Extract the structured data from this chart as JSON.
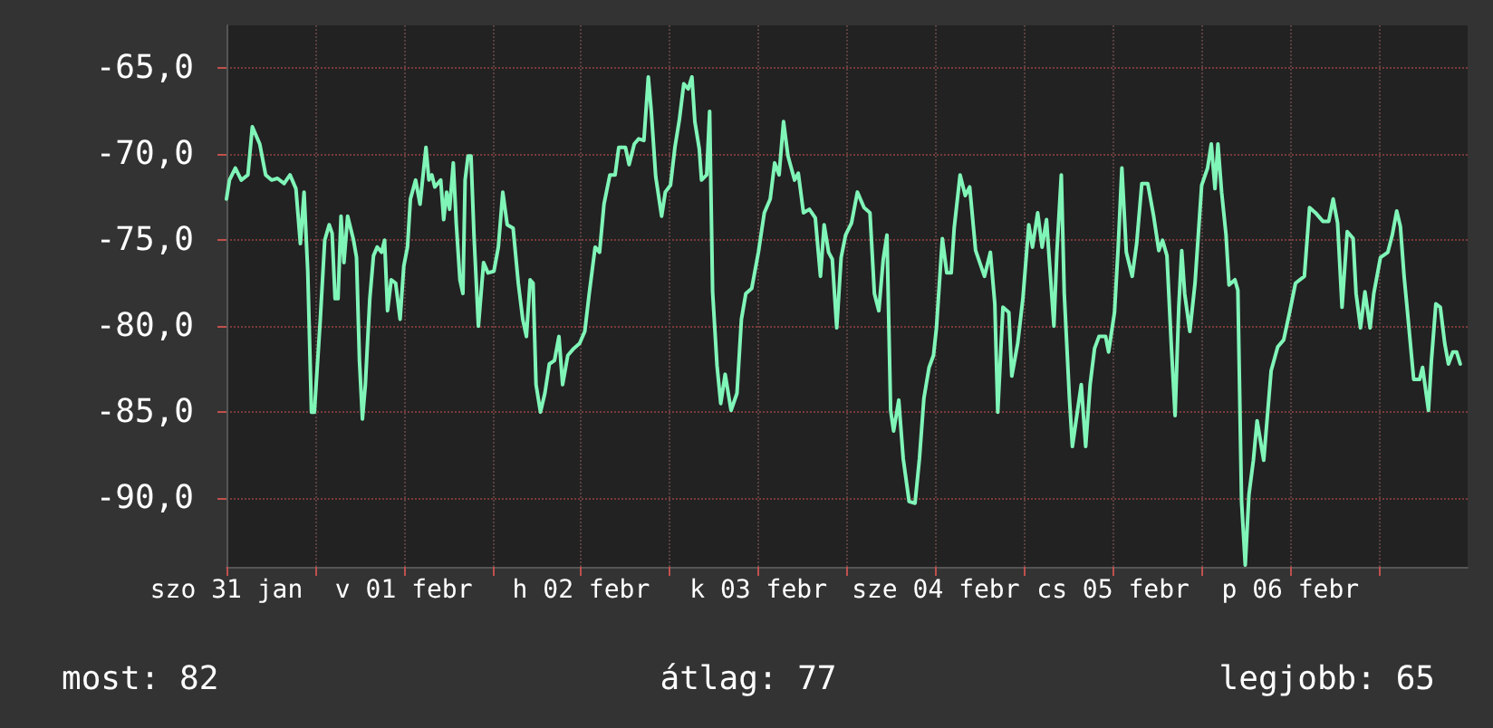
{
  "chart_data": {
    "type": "line",
    "annotations": [
      "most: 82",
      "átlag: 77",
      "legjobb: 65"
    ],
    "xlim": [
      "--01-31T12:00",
      "--02-07T12:00"
    ],
    "ylim": [
      -94,
      -62.5
    ],
    "xticks": [
      {
        "value": "--01-31T12:00",
        "label": "szo 31 jan"
      },
      {
        "value": "--02-01T00:00",
        "label": null
      },
      {
        "value": "--02-01T12:00",
        "label": "v 01 febr"
      },
      {
        "value": "--02-02T00:00",
        "label": null
      },
      {
        "value": "--02-02T12:00",
        "label": "h 02 febr"
      },
      {
        "value": "--02-03T00:00",
        "label": null
      },
      {
        "value": "--02-03T12:00",
        "label": "k 03 febr"
      },
      {
        "value": "--02-04T00:00",
        "label": null
      },
      {
        "value": "--02-04T12:00",
        "label": "sze 04 febr"
      },
      {
        "value": "--02-05T00:00",
        "label": null
      },
      {
        "value": "--02-05T12:00",
        "label": "cs 05 febr"
      },
      {
        "value": "--02-06T00:00",
        "label": null
      },
      {
        "value": "--02-06T12:00",
        "label": "p 06 febr"
      },
      {
        "value": "--02-07T00:00",
        "label": null
      }
    ],
    "yticks": [
      {
        "value": -65,
        "label": "-65,0"
      },
      {
        "value": -70,
        "label": "-70,0"
      },
      {
        "value": -75,
        "label": "-75,0"
      },
      {
        "value": -80,
        "label": "-80,0"
      },
      {
        "value": -85,
        "label": "-85,0"
      },
      {
        "value": -90,
        "label": "-90,0"
      }
    ],
    "grid": true,
    "marker": "none",
    "line_style": "solid",
    "series": [
      {
        "color": "#80f5b8",
        "x": [
          "--01-31T12:00",
          "--01-31T12:24",
          "--01-31T13:12",
          "--01-31T14:00",
          "--01-31T14:54",
          "--01-31T15:30",
          "--01-31T16:30",
          "--01-31T17:18",
          "--01-31T18:06",
          "--01-31T18:54",
          "--01-31T19:48",
          "--01-31T20:36",
          "--01-31T21:24",
          "--01-31T22:00",
          "--01-31T22:30",
          "--01-31T23:00",
          "--01-31T23:30",
          "--01-31T23:54",
          "--02-01T00:18",
          "--02-01T00:42",
          "--02-01T01:18",
          "--02-01T01:54",
          "--02-01T02:18",
          "--02-01T02:42",
          "--02-01T03:06",
          "--02-01T03:30",
          "--02-01T03:54",
          "--02-01T04:24",
          "--02-01T04:48",
          "--02-01T05:12",
          "--02-01T05:36",
          "--02-01T06:00",
          "--02-01T06:24",
          "--02-01T06:48",
          "--02-01T07:24",
          "--02-01T07:54",
          "--02-01T08:24",
          "--02-01T09:00",
          "--02-01T09:24",
          "--02-01T09:48",
          "--02-01T10:18",
          "--02-01T10:54",
          "--02-01T11:30",
          "--02-01T12:00",
          "--02-01T12:30",
          "--02-01T12:54",
          "--02-01T13:36",
          "--02-01T14:12",
          "--02-01T15:00",
          "--02-01T15:24",
          "--02-01T15:48",
          "--02-01T16:12",
          "--02-01T17:00",
          "--02-01T17:24",
          "--02-01T17:48",
          "--02-01T18:12",
          "--02-01T18:42",
          "--02-01T19:06",
          "--02-01T19:36",
          "--02-01T20:00",
          "--02-01T20:18",
          "--02-01T20:42",
          "--02-01T21:06",
          "--02-01T21:30",
          "--02-01T22:06",
          "--02-01T22:48",
          "--02-01T23:24",
          "--02-02T00:12",
          "--02-02T00:48",
          "--02-02T01:24",
          "--02-02T02:00",
          "--02-02T02:48",
          "--02-02T03:30",
          "--02-02T04:06",
          "--02-02T04:36",
          "--02-02T05:06",
          "--02-02T05:30",
          "--02-02T05:54",
          "--02-02T06:30",
          "--02-02T07:06",
          "--02-02T07:42",
          "--02-02T08:24",
          "--02-02T09:00",
          "--02-02T09:30",
          "--02-02T10:12",
          "--02-02T11:00",
          "--02-02T11:48",
          "--02-02T12:30",
          "--02-02T13:06",
          "--02-02T13:54",
          "--02-02T14:30",
          "--02-02T15:06",
          "--02-02T15:54",
          "--02-02T16:36",
          "--02-02T17:06",
          "--02-02T18:00",
          "--02-02T18:30",
          "--02-02T19:12",
          "--02-02T19:48",
          "--02-02T20:30",
          "--02-02T21:06",
          "--02-02T21:30",
          "--02-02T22:06",
          "--02-02T22:54",
          "--02-02T23:24",
          "--02-03T00:06",
          "--02-03T00:42",
          "--02-03T01:18",
          "--02-03T01:54",
          "--02-03T02:30",
          "--02-03T03:00",
          "--02-03T03:24",
          "--02-03T04:00",
          "--02-03T04:18",
          "--02-03T05:00",
          "--02-03T05:24",
          "--02-03T05:48",
          "--02-03T06:24",
          "--02-03T06:54",
          "--02-03T07:30",
          "--02-03T08:18",
          "--02-03T09:06",
          "--02-03T09:42",
          "--02-03T10:18",
          "--02-03T11:06",
          "--02-03T12:00",
          "--02-03T12:48",
          "--02-03T13:36",
          "--02-03T14:12",
          "--02-03T14:48",
          "--02-03T15:24",
          "--02-03T16:00",
          "--02-03T16:54",
          "--02-03T17:24",
          "--02-03T18:06",
          "--02-03T18:54",
          "--02-03T19:42",
          "--02-03T20:24",
          "--02-03T20:54",
          "--02-03T21:30",
          "--02-03T22:00",
          "--02-03T22:36",
          "--02-03T23:12",
          "--02-03T23:48",
          "--02-04T00:36",
          "--02-04T01:24",
          "--02-04T02:18",
          "--02-04T03:06",
          "--02-04T03:42",
          "--02-04T04:18",
          "--02-04T04:54",
          "--02-04T05:24",
          "--02-04T05:54",
          "--02-04T06:18",
          "--02-04T07:00",
          "--02-04T07:36",
          "--02-04T08:24",
          "--02-04T09:12",
          "--02-04T09:48",
          "--02-04T10:24",
          "--02-04T11:06",
          "--02-04T11:42",
          "--02-04T12:06",
          "--02-04T12:54",
          "--02-04T13:30",
          "--02-04T14:06",
          "--02-04T14:30",
          "--02-04T15:18",
          "--02-04T16:00",
          "--02-04T16:36",
          "--02-04T17:24",
          "--02-04T18:36",
          "--02-04T19:24",
          "--02-04T20:00",
          "--02-04T20:24",
          "--02-04T21:06",
          "--02-04T21:54",
          "--02-04T22:18",
          "--02-04T23:06",
          "--02-04T23:48",
          "--02-05T00:36",
          "--02-05T01:06",
          "--02-05T01:48",
          "--02-05T02:24",
          "--02-05T03:00",
          "--02-05T04:00",
          "--02-05T04:24",
          "--02-05T05:00",
          "--02-05T05:24",
          "--02-05T06:06",
          "--02-05T06:30",
          "--02-05T07:00",
          "--02-05T07:42",
          "--02-05T08:18",
          "--02-05T08:54",
          "--02-05T09:30",
          "--02-05T10:06",
          "--02-05T11:00",
          "--02-05T11:24",
          "--02-05T12:12",
          "--02-05T12:42",
          "--02-05T13:12",
          "--02-05T13:48",
          "--02-05T14:36",
          "--02-05T15:12",
          "--02-05T15:54",
          "--02-05T16:42",
          "--02-05T17:30",
          "--02-05T18:12",
          "--02-05T18:42",
          "--02-05T19:18",
          "--02-05T19:54",
          "--02-05T20:24",
          "--02-05T20:54",
          "--02-05T21:18",
          "--02-05T21:42",
          "--02-05T22:24",
          "--02-05T23:06",
          "--02-06T00:00",
          "--02-06T00:48",
          "--02-06T01:18",
          "--02-06T01:48",
          "--02-06T02:12",
          "--02-06T02:42",
          "--02-06T03:18",
          "--02-06T03:42",
          "--02-06T04:30",
          "--02-06T04:54",
          "--02-06T05:24",
          "--02-06T05:54",
          "--02-06T06:24",
          "--02-06T07:00",
          "--02-06T07:30",
          "--02-06T08:24",
          "--02-06T08:54",
          "--02-06T09:24",
          "--02-06T10:18",
          "--02-06T11:06",
          "--02-06T11:54",
          "--02-06T12:42",
          "--02-06T13:54",
          "--02-06T14:36",
          "--02-06T15:24",
          "--02-06T16:24",
          "--02-06T17:12",
          "--02-06T17:48",
          "--02-06T18:24",
          "--02-06T19:00",
          "--02-06T19:42",
          "--02-06T20:30",
          "--02-06T20:54",
          "--02-06T21:30",
          "--02-06T22:06",
          "--02-06T22:48",
          "--02-06T23:18",
          "--02-07T00:12",
          "--02-07T01:12",
          "--02-07T01:48",
          "--02-07T02:24",
          "--02-07T02:54",
          "--02-07T03:24",
          "--02-07T03:48",
          "--02-07T04:42",
          "--02-07T05:30",
          "--02-07T05:54",
          "--02-07T06:42",
          "--02-07T07:06",
          "--02-07T07:42",
          "--02-07T08:18",
          "--02-07T08:54",
          "--02-07T09:24",
          "--02-07T10:00",
          "--02-07T10:30",
          "--02-07T11:00"
        ],
        "values": [
          -72.6,
          -71.5,
          -70.8,
          -71.5,
          -71.2,
          -68.4,
          -69.4,
          -71.2,
          -71.5,
          -71.4,
          -71.7,
          -71.2,
          -72.0,
          -75.2,
          -72.2,
          -76.8,
          -85.0,
          -85.0,
          -82.3,
          -79.6,
          -75.0,
          -74.1,
          -74.6,
          -78.4,
          -78.4,
          -73.6,
          -76.3,
          -73.6,
          -74.3,
          -75.0,
          -76.0,
          -82.0,
          -85.4,
          -83.4,
          -78.4,
          -75.9,
          -75.4,
          -75.7,
          -75.0,
          -79.1,
          -77.3,
          -77.5,
          -79.6,
          -76.5,
          -75.4,
          -72.6,
          -71.5,
          -72.9,
          -69.6,
          -71.5,
          -71.2,
          -71.9,
          -71.5,
          -73.8,
          -72.2,
          -73.2,
          -70.5,
          -74.0,
          -77.3,
          -78.1,
          -71.5,
          -70.1,
          -70.1,
          -74.7,
          -80.0,
          -76.3,
          -76.9,
          -76.8,
          -75.4,
          -72.2,
          -74.1,
          -74.3,
          -77.5,
          -79.6,
          -80.6,
          -77.3,
          -77.5,
          -83.4,
          -85.0,
          -83.9,
          -82.2,
          -82.0,
          -80.6,
          -83.4,
          -81.7,
          -81.3,
          -81.0,
          -80.3,
          -78.1,
          -75.4,
          -75.7,
          -72.9,
          -71.2,
          -71.2,
          -69.6,
          -69.6,
          -70.6,
          -69.4,
          -69.1,
          -69.2,
          -65.5,
          -67.5,
          -71.3,
          -73.6,
          -72.2,
          -71.8,
          -69.6,
          -68.0,
          -65.9,
          -66.2,
          -65.5,
          -68.1,
          -69.7,
          -71.5,
          -71.2,
          -67.5,
          -78.0,
          -82.3,
          -84.5,
          -82.8,
          -84.9,
          -83.9,
          -79.6,
          -78.1,
          -77.8,
          -75.7,
          -73.4,
          -72.6,
          -70.5,
          -71.2,
          -68.1,
          -70.1,
          -71.5,
          -71.1,
          -73.4,
          -73.2,
          -73.7,
          -77.1,
          -74.1,
          -75.7,
          -76.1,
          -80.1,
          -76.0,
          -74.7,
          -74.0,
          -72.2,
          -73.1,
          -73.4,
          -78.1,
          -79.1,
          -76.1,
          -74.7,
          -84.9,
          -86.1,
          -84.3,
          -87.7,
          -90.2,
          -90.3,
          -87.7,
          -84.2,
          -82.4,
          -81.7,
          -80.1,
          -74.9,
          -76.9,
          -76.9,
          -74.3,
          -71.2,
          -72.4,
          -71.9,
          -75.6,
          -77.1,
          -75.7,
          -78.7,
          -85.0,
          -78.9,
          -79.2,
          -82.9,
          -81.0,
          -78.4,
          -74.1,
          -75.4,
          -73.4,
          -75.4,
          -73.8,
          -80.0,
          -75.7,
          -71.2,
          -78.1,
          -84.2,
          -87.0,
          -85.5,
          -83.4,
          -87.0,
          -83.4,
          -81.3,
          -80.6,
          -80.6,
          -81.5,
          -79.2,
          -75.4,
          -70.8,
          -75.7,
          -77.1,
          -75.2,
          -71.7,
          -71.7,
          -73.6,
          -75.6,
          -75.0,
          -75.9,
          -81.2,
          -85.2,
          -78.9,
          -75.6,
          -78.1,
          -80.3,
          -77.5,
          -71.8,
          -70.8,
          -69.4,
          -72.0,
          -69.4,
          -72.2,
          -74.7,
          -77.6,
          -77.3,
          -77.9,
          -90.2,
          -93.9,
          -89.8,
          -87.8,
          -85.5,
          -87.8,
          -85.2,
          -82.6,
          -81.2,
          -80.8,
          -79.2,
          -77.5,
          -77.1,
          -73.1,
          -73.4,
          -73.9,
          -73.9,
          -72.6,
          -74.0,
          -78.9,
          -74.5,
          -74.9,
          -78.1,
          -80.1,
          -78.0,
          -80.1,
          -78.1,
          -76.0,
          -75.7,
          -74.7,
          -73.3,
          -74.2,
          -77.1,
          -78.9,
          -83.1,
          -83.1,
          -82.4,
          -84.9,
          -82.0,
          -78.7,
          -78.9,
          -81.0,
          -82.2,
          -81.5,
          -81.5,
          -82.2
        ]
      }
    ]
  }
}
